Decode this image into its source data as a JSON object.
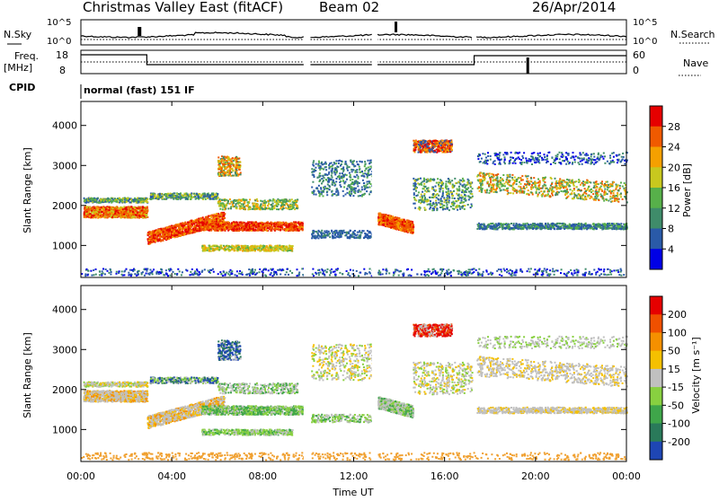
{
  "header": {
    "title": "Christmas Valley East (fitACF)",
    "beam": "Beam 02",
    "date": "26/Apr/2014"
  },
  "strips": {
    "nsky_label": "N.Sky",
    "nsky_ticks": [
      "10^5",
      "10^0"
    ],
    "nsearch_label": "N.Search",
    "nsearch_ticks": [
      "10^5",
      "10^0"
    ],
    "freq_label": "Freq.",
    "freq_unit": "[MHz]",
    "freq_ticks": [
      "18",
      "8"
    ],
    "nave_label": "Nave",
    "nave_ticks": [
      "60",
      "0"
    ],
    "cpid_label": "CPID",
    "cpid_value": "normal (fast) 151 IF"
  },
  "chart_data": [
    {
      "name": "power",
      "type": "heatmap",
      "ylabel": "Slant Range [km]",
      "ylim": [
        200,
        4600
      ],
      "yticks": [
        "1000",
        "2000",
        "3000",
        "4000"
      ],
      "colorbar_label": "Power [dB]",
      "colorbar_ticks": [
        "4",
        "8",
        "12",
        "16",
        "20",
        "24",
        "28"
      ],
      "colorbar_colors": [
        "#0000e6",
        "#2a5aa8",
        "#3f8c6a",
        "#57b04a",
        "#c8c81e",
        "#f5a000",
        "#f05a00",
        "#e60000"
      ]
    },
    {
      "name": "velocity",
      "type": "heatmap",
      "ylabel": "Slant Range [km]",
      "ylim": [
        200,
        4600
      ],
      "yticks": [
        "1000",
        "2000",
        "3000",
        "4000"
      ],
      "colorbar_label": "Velocity [m s⁻¹]",
      "colorbar_ticks": [
        "200",
        "100",
        "50",
        "15",
        "-15",
        "-50",
        "-100",
        "-200"
      ],
      "colorbar_colors": [
        "#1e46b4",
        "#2a7a5a",
        "#3fa64a",
        "#88d040",
        "#c0c0c0",
        "#f5c000",
        "#f59000",
        "#f05000",
        "#e60000"
      ]
    }
  ],
  "xaxis": {
    "label": "Time UT",
    "ticks": [
      "00:00",
      "04:00",
      "08:00",
      "12:00",
      "16:00",
      "20:00",
      "00:00"
    ]
  },
  "colors": {
    "ground": "#f0a030"
  }
}
